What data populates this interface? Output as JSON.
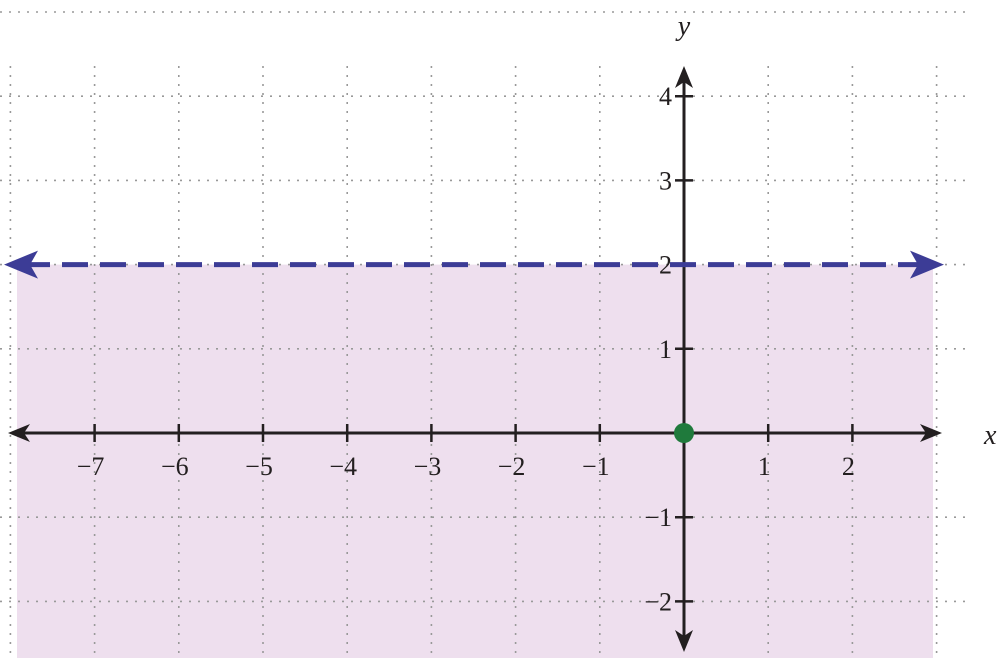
{
  "chart_data": {
    "type": "line",
    "title": "",
    "xlabel": "x",
    "ylabel": "y",
    "xlim": [
      -8,
      3
    ],
    "ylim": [
      -3,
      5
    ],
    "grid": true,
    "x_ticks": [
      {
        "value": -7,
        "label": "−7"
      },
      {
        "value": -6,
        "label": "−6"
      },
      {
        "value": -5,
        "label": "−5"
      },
      {
        "value": -4,
        "label": "−4"
      },
      {
        "value": -3,
        "label": "−3"
      },
      {
        "value": -2,
        "label": "−2"
      },
      {
        "value": -1,
        "label": "−1"
      },
      {
        "value": 1,
        "label": "1"
      },
      {
        "value": 2,
        "label": "2"
      }
    ],
    "y_ticks": [
      {
        "value": 4,
        "label": "4"
      },
      {
        "value": 3,
        "label": "3"
      },
      {
        "value": 2,
        "label": "2"
      },
      {
        "value": 1,
        "label": "1"
      },
      {
        "value": -1,
        "label": "−1"
      },
      {
        "value": -2,
        "label": "−2"
      }
    ],
    "boundary_line": {
      "y": 2,
      "style": "dashed",
      "arrows": "both"
    },
    "shaded_region": "below boundary line",
    "points": [
      {
        "x": 0,
        "y": 0
      }
    ],
    "colors": {
      "boundary": "#3c3c96",
      "shade": "#eedfee",
      "point": "#1f7a3c",
      "axis": "#231f20",
      "grid": "#999999"
    }
  }
}
